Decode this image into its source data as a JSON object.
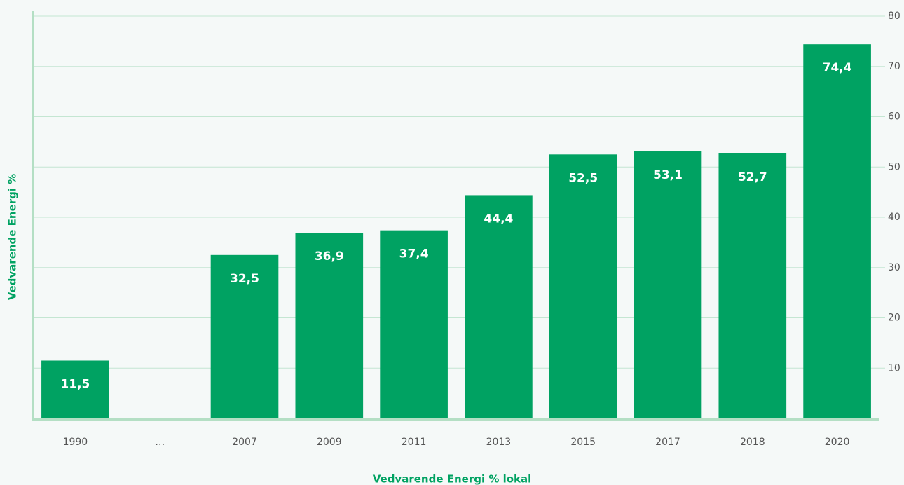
{
  "chart_data": {
    "type": "bar",
    "x_label": "Vedvarende Energi % lokal",
    "y_label": "Vedvarende Energi %",
    "categories": [
      "1990",
      "…",
      "2007",
      "2009",
      "2011",
      "2013",
      "2015",
      "2017",
      "2018",
      "2020"
    ],
    "values": [
      11.5,
      null,
      32.5,
      36.9,
      37.4,
      44.4,
      52.5,
      53.1,
      52.7,
      74.4
    ],
    "value_labels": [
      "11,5",
      null,
      "32,5",
      "36,9",
      "37,4",
      "44,4",
      "52,5",
      "53,1",
      "52,7",
      "74,4"
    ],
    "color": "#00a262",
    "ylim": [
      0,
      80
    ],
    "yticks": [
      10,
      20,
      30,
      40,
      50,
      60,
      70,
      80
    ],
    "y_axis_side": "right",
    "grid": true
  }
}
